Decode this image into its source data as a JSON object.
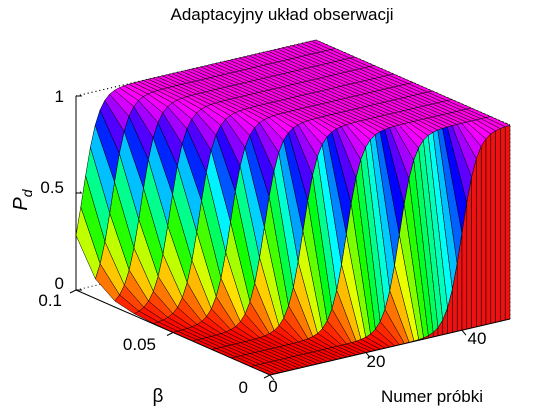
{
  "chart_data": {
    "type": "surface",
    "title": "Adaptacyjny układ obserwacji",
    "xlabel": "Numer próbki",
    "ylabel": "β",
    "zlabel_main": "P",
    "zlabel_sub": "d",
    "x_range": [
      0,
      50
    ],
    "y_range": [
      0,
      0.1
    ],
    "z_range": [
      0,
      1
    ],
    "x_ticks": [
      "0",
      "20",
      "40"
    ],
    "y_ticks": [
      "0",
      "0.05",
      "0.1"
    ],
    "z_ticks": [
      "0",
      "0.5",
      "1"
    ],
    "colormap": "hsv",
    "grid": true,
    "series": [
      {
        "beta": 0.1,
        "transition_sample": 1.5
      },
      {
        "beta": 0.09,
        "transition_sample": 3.5
      },
      {
        "beta": 0.08,
        "transition_sample": 5.5
      },
      {
        "beta": 0.07,
        "transition_sample": 7.5
      },
      {
        "beta": 0.06,
        "transition_sample": 9.5
      },
      {
        "beta": 0.05,
        "transition_sample": 12.0
      },
      {
        "beta": 0.04,
        "transition_sample": 15.0
      },
      {
        "beta": 0.03,
        "transition_sample": 19.0
      },
      {
        "beta": 0.02,
        "transition_sample": 24.0
      },
      {
        "beta": 0.01,
        "transition_sample": 31.0
      },
      {
        "beta": 0.0,
        "transition_sample": 40.0
      }
    ]
  }
}
